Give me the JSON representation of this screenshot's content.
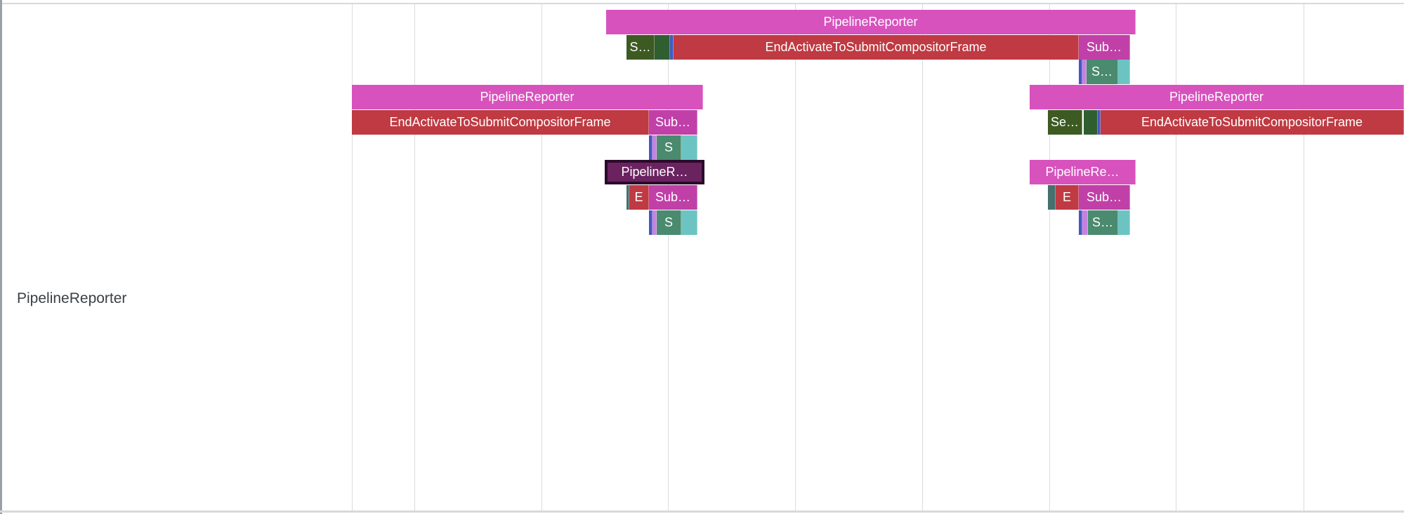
{
  "track": {
    "label": "PipelineReporter"
  },
  "colors": {
    "pipeline": "#d752bd",
    "pipeline_selected": "#6b2360",
    "end_activate": "#bf3a42",
    "submit": "#c040a8",
    "send_begin": "#3d5a23",
    "dark_green": "#2f5f30",
    "blue": "#4658c0",
    "lilac": "#c880e0",
    "swap_green": "#4a8a6e",
    "teal": "#6cc4c2",
    "dark_teal": "#46706e",
    "grid": "#dcdce0"
  },
  "slices": [
    {
      "label": "PipelineReporter",
      "color": "pipeline"
    },
    {
      "label": "S…",
      "color": "send_begin"
    },
    {
      "label": "",
      "color": "dark_green"
    },
    {
      "label": "",
      "color": "blue"
    },
    {
      "label": "EndActivateToSubmitCompositorFrame",
      "color": "end_activate"
    },
    {
      "label": "Sub…",
      "color": "submit"
    },
    {
      "label": "",
      "color": "blue"
    },
    {
      "label": "",
      "color": "lilac"
    },
    {
      "label": "S…",
      "color": "swap_green"
    },
    {
      "label": "",
      "color": "teal"
    },
    {
      "label": "PipelineReporter",
      "color": "pipeline"
    },
    {
      "label": "PipelineReporter",
      "color": "pipeline"
    },
    {
      "label": "EndActivateToSubmitCompositorFrame",
      "color": "end_activate"
    },
    {
      "label": "Sub…",
      "color": "submit"
    },
    {
      "label": "Se…",
      "color": "send_begin"
    },
    {
      "label": "",
      "color": "dark_green"
    },
    {
      "label": "",
      "color": "blue"
    },
    {
      "label": "EndActivateToSubmitCompositorFrame",
      "color": "end_activate"
    },
    {
      "label": "",
      "color": "blue"
    },
    {
      "label": "",
      "color": "lilac"
    },
    {
      "label": "S",
      "color": "swap_green"
    },
    {
      "label": "",
      "color": "teal"
    },
    {
      "label": "PipelineR…",
      "color": "pipeline_selected",
      "selected": true
    },
    {
      "label": "PipelineRe…",
      "color": "pipeline"
    },
    {
      "label": "",
      "color": "dark_teal"
    },
    {
      "label": "E",
      "color": "end_activate"
    },
    {
      "label": "Sub…",
      "color": "submit"
    },
    {
      "label": "",
      "color": "dark_teal"
    },
    {
      "label": "E",
      "color": "end_activate"
    },
    {
      "label": "Sub…",
      "color": "submit"
    },
    {
      "label": "",
      "color": "blue"
    },
    {
      "label": "",
      "color": "lilac"
    },
    {
      "label": "S",
      "color": "swap_green"
    },
    {
      "label": "",
      "color": "teal"
    },
    {
      "label": "",
      "color": "blue"
    },
    {
      "label": "",
      "color": "lilac"
    },
    {
      "label": "S…",
      "color": "swap_green"
    },
    {
      "label": "",
      "color": "teal"
    }
  ]
}
